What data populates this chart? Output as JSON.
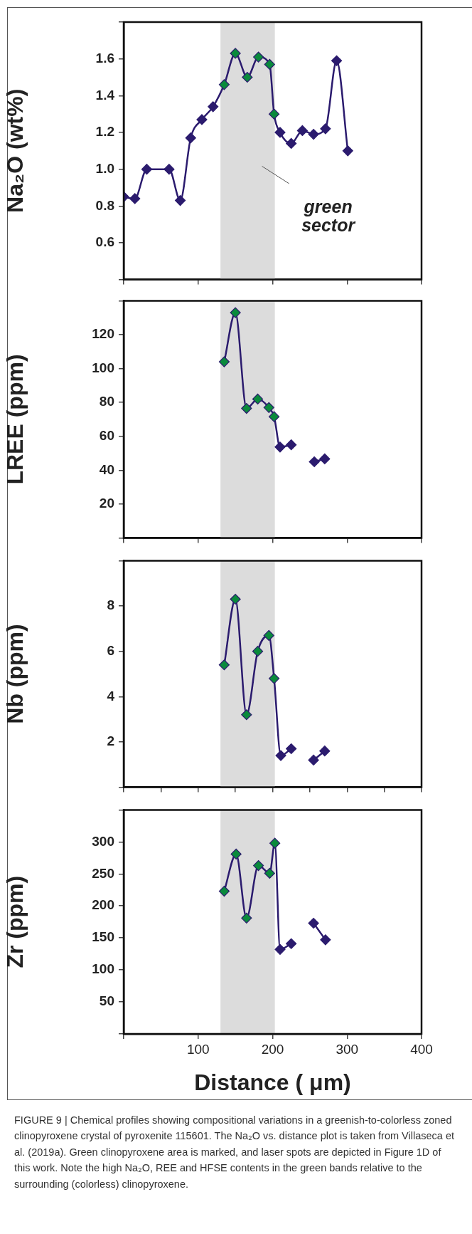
{
  "chart_data": [
    {
      "type": "line",
      "ylabel": "Na₂O (wt%)",
      "xlim": [
        0,
        400
      ],
      "xticks": [
        {
          "value": 0,
          "label": null
        },
        {
          "value": 100,
          "label": null
        },
        {
          "value": 200,
          "label": null
        },
        {
          "value": 300,
          "label": null
        },
        {
          "value": 400,
          "label": null
        }
      ],
      "ylim": [
        0.4,
        1.8
      ],
      "yticks": [
        {
          "value": 0.4,
          "label": null
        },
        {
          "value": 0.6,
          "label": "0.6"
        },
        {
          "value": 0.8,
          "label": "0.8"
        },
        {
          "value": 1.0,
          "label": "1.0"
        },
        {
          "value": 1.2,
          "label": "1.2"
        },
        {
          "value": 1.4,
          "label": "1.4"
        },
        {
          "value": 1.6,
          "label": "1.6"
        },
        {
          "value": 1.8,
          "label": null
        }
      ],
      "tick_labels": "y",
      "grid": false,
      "legend": false,
      "marker": "diamond",
      "bands": [
        {
          "axis": "x",
          "from": 130,
          "to": 203,
          "label": "green sector",
          "color": "#dcdcdc"
        }
      ],
      "series": [
        {
          "color": "#2b1b6e",
          "x": [
            0,
            15,
            31,
            61,
            76,
            90,
            105,
            120,
            135,
            150,
            166,
            181,
            196,
            202,
            210,
            225,
            240,
            255,
            271,
            286,
            301
          ],
          "values": [
            0.85,
            0.84,
            1.0,
            1.0,
            0.83,
            1.17,
            1.27,
            1.34,
            1.46,
            1.63,
            1.5,
            1.61,
            1.57,
            1.3,
            1.2,
            1.14,
            1.21,
            1.19,
            1.22,
            1.59,
            1.1
          ],
          "colors": [
            "#2b1b6e",
            "#2b1b6e",
            "#2b1b6e",
            "#2b1b6e",
            "#2b1b6e",
            "#2b1b6e",
            "#2b1b6e",
            "#2b1b6e",
            "#0a8a3c",
            "#0a8a3c",
            "#0a8a3c",
            "#0a8a3c",
            "#0a8a3c",
            "#0a8a3c",
            "#2b1b6e",
            "#2b1b6e",
            "#2b1b6e",
            "#2b1b6e",
            "#2b1b6e",
            "#2b1b6e",
            "#2b1b6e"
          ]
        }
      ]
    },
    {
      "type": "line",
      "ylabel": "LREE (ppm)",
      "xlim": [
        0,
        400
      ],
      "xticks": [
        {
          "value": 0,
          "label": null
        },
        {
          "value": 100,
          "label": null
        },
        {
          "value": 200,
          "label": null
        },
        {
          "value": 300,
          "label": null
        },
        {
          "value": 400,
          "label": null
        }
      ],
      "ylim": [
        0,
        140
      ],
      "yticks": [
        {
          "value": 0,
          "label": null
        },
        20,
        40,
        60,
        80,
        100,
        120,
        {
          "value": 140,
          "label": null
        }
      ],
      "tick_labels": "y",
      "grid": false,
      "legend": false,
      "marker": "diamond",
      "bands": [
        {
          "axis": "x",
          "from": 130,
          "to": 203,
          "color": "#dcdcdc"
        }
      ],
      "series": [
        {
          "color": "#2b1b6e",
          "x": [
            135,
            150,
            165,
            180,
            195,
            202,
            210,
            225
          ],
          "values": [
            104,
            133,
            76.5,
            82,
            77,
            71.6,
            53.7,
            55
          ],
          "colors": [
            "#0a8a3c",
            "#0a8a3c",
            "#0a8a3c",
            "#0a8a3c",
            "#0a8a3c",
            "#0a8a3c",
            "#2b1b6e",
            "#2b1b6e"
          ]
        },
        {
          "color": "#2b1b6e",
          "x": [
            256,
            270
          ],
          "values": [
            45,
            46.7
          ]
        }
      ]
    },
    {
      "type": "line",
      "ylabel": "Nb (ppm)",
      "xlim": [
        0,
        400
      ],
      "xticks": [
        {
          "value": 0,
          "label": null
        },
        {
          "value": 50,
          "label": null
        },
        {
          "value": 100,
          "label": null
        },
        {
          "value": 150,
          "label": null
        },
        {
          "value": 200,
          "label": null
        },
        {
          "value": 250,
          "label": null
        },
        {
          "value": 300,
          "label": null
        },
        {
          "value": 350,
          "label": null
        },
        {
          "value": 400,
          "label": null
        }
      ],
      "ylim": [
        0,
        10
      ],
      "yticks": [
        {
          "value": 0,
          "label": null
        },
        2,
        4,
        6,
        8,
        {
          "value": 10,
          "label": null
        }
      ],
      "tick_labels": "y",
      "grid": false,
      "legend": false,
      "marker": "diamond",
      "bands": [
        {
          "axis": "x",
          "from": 130,
          "to": 203,
          "color": "#dcdcdc"
        }
      ],
      "series": [
        {
          "color": "#2b1b6e",
          "x": [
            135,
            150,
            165,
            180,
            195,
            202,
            211,
            225
          ],
          "values": [
            5.4,
            8.3,
            3.2,
            6.0,
            6.7,
            4.8,
            1.4,
            1.7
          ],
          "colors": [
            "#0a8a3c",
            "#0a8a3c",
            "#0a8a3c",
            "#0a8a3c",
            "#0a8a3c",
            "#0a8a3c",
            "#2b1b6e",
            "#2b1b6e"
          ]
        },
        {
          "color": "#2b1b6e",
          "x": [
            255,
            270
          ],
          "values": [
            1.2,
            1.6
          ]
        }
      ]
    },
    {
      "type": "line",
      "ylabel": "Zr (ppm)",
      "xlabel": "Distance ( μm)",
      "xlim": [
        0,
        400
      ],
      "xticks": [
        {
          "value": 0,
          "label": null
        },
        100,
        200,
        300,
        400
      ],
      "ylim": [
        0,
        350
      ],
      "yticks": [
        {
          "value": 0,
          "label": null
        },
        50,
        100,
        150,
        200,
        250,
        300,
        {
          "value": 350,
          "label": null
        }
      ],
      "grid": false,
      "legend": false,
      "marker": "diamond",
      "bands": [
        {
          "axis": "x",
          "from": 130,
          "to": 203,
          "color": "#dcdcdc"
        }
      ],
      "series": [
        {
          "color": "#2b1b6e",
          "x": [
            135,
            151,
            165,
            181,
            196,
            203,
            210,
            225
          ],
          "values": [
            223,
            281,
            181,
            263,
            251,
            298,
            132,
            141
          ],
          "colors": [
            "#0a8a3c",
            "#0a8a3c",
            "#0a8a3c",
            "#0a8a3c",
            "#0a8a3c",
            "#0a8a3c",
            "#2b1b6e",
            "#2b1b6e"
          ]
        },
        {
          "color": "#2b1b6e",
          "x": [
            255,
            271
          ],
          "values": [
            173,
            147
          ]
        }
      ],
      "annotations": [
        "FIGURE 9 | Chemical profiles showing compositional variations in a greenish-to-colorless zoned clinopyroxene crystal of pyroxenite 115601. The Na₂O vs. distance plot is taken from Villaseca et al. (2019a). Green clinopyroxene area is marked, and laser spots are depicted in Figure 1D of this work. Note the high Na₂O, REE and HFSE contents in the green bands relative to the surrounding (colorless) clinopyroxene."
      ]
    }
  ]
}
